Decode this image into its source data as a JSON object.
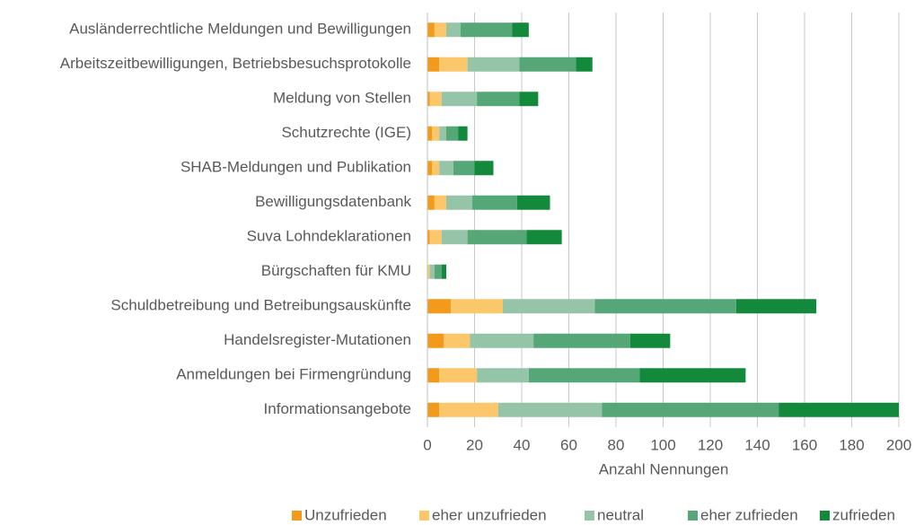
{
  "chart_data": {
    "type": "stacked_barh",
    "categories": [
      "Ausländerrechtliche Meldungen und Bewilligungen",
      "Arbeitszeitbewilligungen, Betriebsbesuchsprotokolle",
      "Meldung von Stellen",
      "Schutzrechte (IGE)",
      "SHAB-Meldungen und Publikation",
      "Bewilligungsdatenbank",
      "Suva Lohndeklarationen",
      "Bürgschaften für KMU",
      "Schuldbetreibung und Betreibungsauskünfte",
      "Handelsregister-Mutationen",
      "Anmeldungen bei Firmengründung",
      "Informationsangebote"
    ],
    "series": [
      {
        "name": "Unzufrieden",
        "color": "#f39a1b",
        "values": [
          3,
          5,
          1,
          2,
          2,
          3,
          1,
          0,
          10,
          7,
          5,
          5
        ]
      },
      {
        "name": "eher unzufrieden",
        "color": "#fcc76a",
        "values": [
          5,
          12,
          5,
          3,
          3,
          5,
          5,
          1,
          22,
          11,
          16,
          25
        ]
      },
      {
        "name": "neutral",
        "color": "#96c4a9",
        "values": [
          6,
          22,
          15,
          3,
          6,
          11,
          11,
          2,
          39,
          27,
          22,
          44
        ]
      },
      {
        "name": "eher zufrieden",
        "color": "#55a778",
        "values": [
          22,
          24,
          18,
          5,
          9,
          19,
          25,
          3,
          60,
          41,
          47,
          75
        ]
      },
      {
        "name": "zufrieden",
        "color": "#138a3b",
        "values": [
          7,
          7,
          8,
          4,
          8,
          14,
          15,
          2,
          34,
          17,
          45,
          51
        ]
      }
    ],
    "xlabel": "Anzahl Nennungen",
    "xlim": [
      0,
      200
    ],
    "xticks": [
      0,
      20,
      40,
      60,
      80,
      100,
      120,
      140,
      160,
      180,
      200
    ],
    "grid": true,
    "legend": "bottom"
  }
}
